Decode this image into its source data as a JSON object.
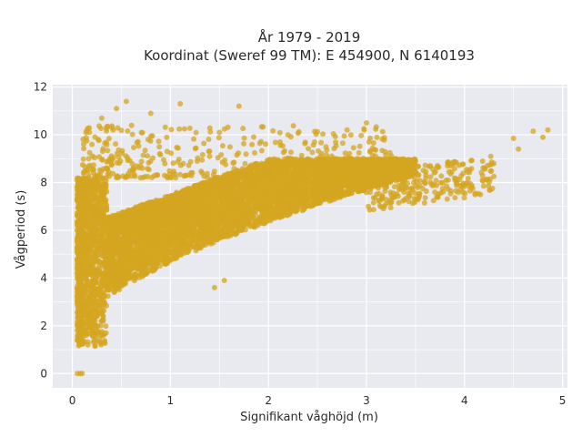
{
  "chart_data": {
    "type": "scatter",
    "title": "År 1979 - 2019",
    "subtitle": "Koordinat (Sweref 99 TM): E 454900, N 6140193",
    "xlabel": "Signifikant våghöjd (m)",
    "ylabel": "Vågperiod (s)",
    "xlim": [
      -0.2,
      5.05
    ],
    "ylim": [
      -0.6,
      12.1
    ],
    "x_ticks": [
      "0",
      "1",
      "2",
      "3",
      "4",
      "5"
    ],
    "y_ticks": [
      "0",
      "2",
      "4",
      "6",
      "8",
      "10",
      "12"
    ],
    "grid": true,
    "marker_color": "#d4a520",
    "background": "#e9e9f0",
    "point_count": 7000,
    "outliers": [
      {
        "x": 0.05,
        "y": 0.0
      },
      {
        "x": 0.08,
        "y": 0.0
      },
      {
        "x": 0.1,
        "y": 0.0
      },
      {
        "x": 0.55,
        "y": 11.4
      },
      {
        "x": 0.45,
        "y": 11.1
      },
      {
        "x": 1.1,
        "y": 11.3
      },
      {
        "x": 1.7,
        "y": 11.2
      },
      {
        "x": 0.8,
        "y": 10.9
      },
      {
        "x": 3.0,
        "y": 10.5
      },
      {
        "x": 4.5,
        "y": 9.85
      },
      {
        "x": 4.7,
        "y": 10.15
      },
      {
        "x": 4.85,
        "y": 10.2
      },
      {
        "x": 4.8,
        "y": 9.9
      },
      {
        "x": 4.3,
        "y": 8.8
      },
      {
        "x": 4.55,
        "y": 9.4
      },
      {
        "x": 0.2,
        "y": 9.6
      },
      {
        "x": 0.3,
        "y": 10.7
      },
      {
        "x": 1.5,
        "y": 10.1
      },
      {
        "x": 2.2,
        "y": 10.0
      },
      {
        "x": 0.65,
        "y": 4.9
      },
      {
        "x": 1.55,
        "y": 3.9
      },
      {
        "x": 1.45,
        "y": 3.6
      }
    ]
  }
}
